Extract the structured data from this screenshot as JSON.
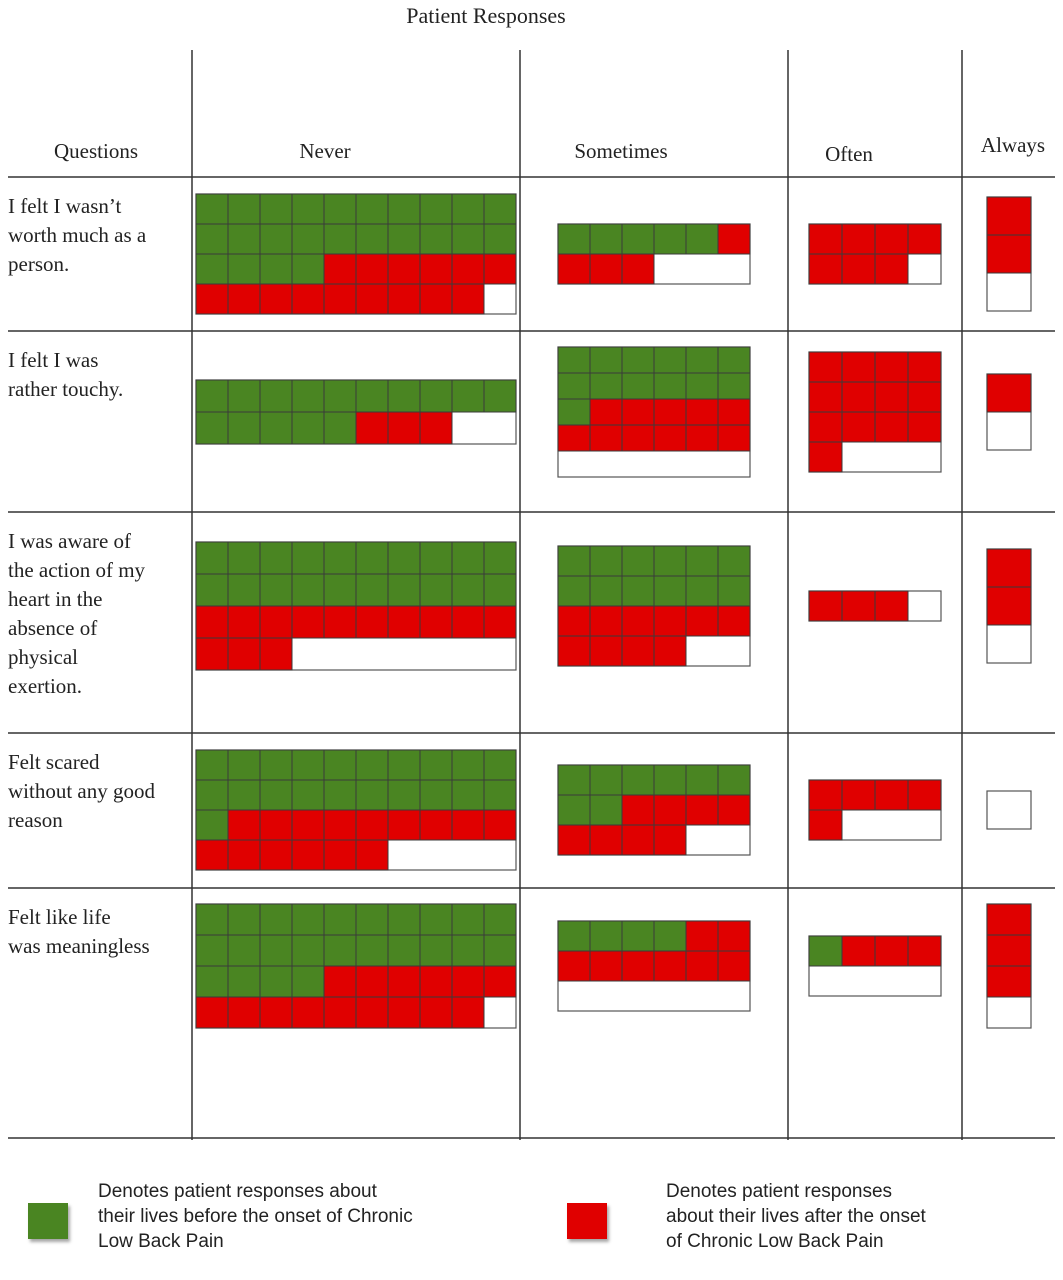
{
  "chart_data": {
    "type": "table",
    "title": "Patient Responses",
    "columns": [
      "Questions",
      "Never",
      "Sometimes",
      "Often",
      "Always"
    ],
    "series": [
      {
        "key": "before",
        "color": "#4a8522"
      },
      {
        "key": "after",
        "color": "#e00000"
      }
    ],
    "rows": [
      {
        "question": "I felt I wasn’t worth much as a person.",
        "cells": [
          {
            "response": "Never",
            "before": 24,
            "after": 15
          },
          {
            "response": "Sometimes",
            "before": 5,
            "after": 4
          },
          {
            "response": "Often",
            "before": 0,
            "after": 7
          },
          {
            "response": "Always",
            "before": 0,
            "after": 2
          }
        ]
      },
      {
        "question": "I felt I was rather touchy.",
        "cells": [
          {
            "response": "Never",
            "before": 15,
            "after": 3
          },
          {
            "response": "Sometimes",
            "before": 13,
            "after": 11
          },
          {
            "response": "Often",
            "before": 0,
            "after": 13
          },
          {
            "response": "Always",
            "before": 0,
            "after": 1
          }
        ]
      },
      {
        "question": "I was aware of the action of my heart in the absence of physical exertion.",
        "cells": [
          {
            "response": "Never",
            "before": 20,
            "after": 13
          },
          {
            "response": "Sometimes",
            "before": 12,
            "after": 10
          },
          {
            "response": "Often",
            "before": 0,
            "after": 3
          },
          {
            "response": "Always",
            "before": 0,
            "after": 2
          }
        ]
      },
      {
        "question": "Felt scared without any good reason",
        "cells": [
          {
            "response": "Never",
            "before": 21,
            "after": 15
          },
          {
            "response": "Sometimes",
            "before": 8,
            "after": 8
          },
          {
            "response": "Often",
            "before": 0,
            "after": 5
          },
          {
            "response": "Always",
            "before": 0,
            "after": 0
          }
        ]
      },
      {
        "question": "Felt like life was meaningless",
        "cells": [
          {
            "response": "Never",
            "before": 24,
            "after": 15
          },
          {
            "response": "Sometimes",
            "before": 4,
            "after": 8
          },
          {
            "response": "Often",
            "before": 1,
            "after": 3
          },
          {
            "response": "Always",
            "before": 0,
            "after": 3
          }
        ]
      }
    ],
    "legend": {
      "placement": "bottom",
      "before_text": "Denotes patient responses about their lives before the onset of Chronic Low Back Pain",
      "after_text": "Denotes patient responses about their lives after the onset of Chronic Low Back Pain"
    }
  }
}
